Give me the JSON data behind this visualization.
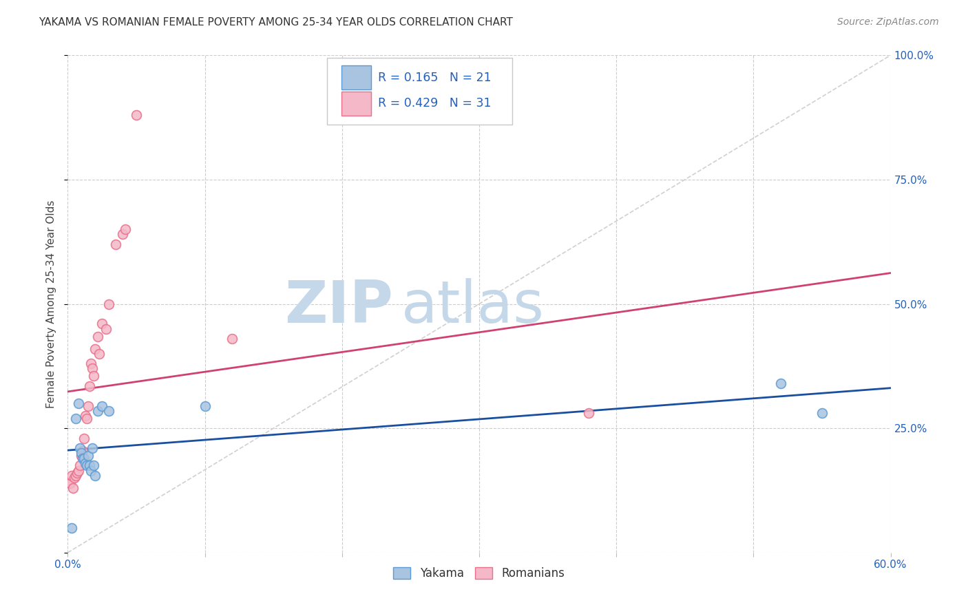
{
  "title": "YAKAMA VS ROMANIAN FEMALE POVERTY AMONG 25-34 YEAR OLDS CORRELATION CHART",
  "source": "Source: ZipAtlas.com",
  "ylabel": "Female Poverty Among 25-34 Year Olds",
  "xlim": [
    0.0,
    0.6
  ],
  "ylim": [
    0.0,
    1.0
  ],
  "xticks": [
    0.0,
    0.1,
    0.2,
    0.3,
    0.4,
    0.5,
    0.6
  ],
  "xtick_labels": [
    "0.0%",
    "",
    "",
    "",
    "",
    "",
    "60.0%"
  ],
  "yticks": [
    0.0,
    0.25,
    0.5,
    0.75,
    1.0
  ],
  "ytick_labels": [
    "",
    "25.0%",
    "50.0%",
    "75.0%",
    "100.0%"
  ],
  "yakama_R": "0.165",
  "yakama_N": "21",
  "romanian_R": "0.429",
  "romanian_N": "31",
  "yakama_color": "#a8c4e0",
  "yakama_edge_color": "#5b9bd5",
  "romanian_color": "#f4b8c8",
  "romanian_edge_color": "#e8708a",
  "regression_line_color_blue": "#1a4fa0",
  "regression_line_color_pink": "#d04070",
  "diagonal_color": "#d0d0d0",
  "watermark_zip": "ZIP",
  "watermark_atlas": "atlas",
  "watermark_color_zip": "#c5d8ea",
  "watermark_color_atlas": "#c5d8ea",
  "background_color": "#ffffff",
  "grid_color": "#cccccc",
  "text_color": "#2060c0",
  "title_color": "#333333",
  "source_color": "#888888",
  "marker_size": 100,
  "yakama_points_x": [
    0.003,
    0.006,
    0.008,
    0.009,
    0.01,
    0.011,
    0.012,
    0.013,
    0.014,
    0.015,
    0.016,
    0.017,
    0.018,
    0.019,
    0.02,
    0.022,
    0.025,
    0.03,
    0.1,
    0.52,
    0.55
  ],
  "yakama_points_y": [
    0.05,
    0.27,
    0.3,
    0.21,
    0.2,
    0.19,
    0.19,
    0.18,
    0.175,
    0.195,
    0.175,
    0.165,
    0.21,
    0.175,
    0.155,
    0.285,
    0.295,
    0.285,
    0.295,
    0.34,
    0.28
  ],
  "romanian_points_x": [
    0.001,
    0.002,
    0.003,
    0.004,
    0.005,
    0.006,
    0.007,
    0.008,
    0.009,
    0.01,
    0.011,
    0.012,
    0.013,
    0.014,
    0.015,
    0.016,
    0.017,
    0.018,
    0.019,
    0.02,
    0.022,
    0.023,
    0.025,
    0.028,
    0.03,
    0.035,
    0.04,
    0.042,
    0.05,
    0.12,
    0.38
  ],
  "romanian_points_y": [
    0.14,
    0.14,
    0.155,
    0.13,
    0.15,
    0.155,
    0.16,
    0.165,
    0.175,
    0.195,
    0.205,
    0.23,
    0.275,
    0.27,
    0.295,
    0.335,
    0.38,
    0.37,
    0.355,
    0.41,
    0.435,
    0.4,
    0.46,
    0.45,
    0.5,
    0.62,
    0.64,
    0.65,
    0.88,
    0.43,
    0.28
  ]
}
